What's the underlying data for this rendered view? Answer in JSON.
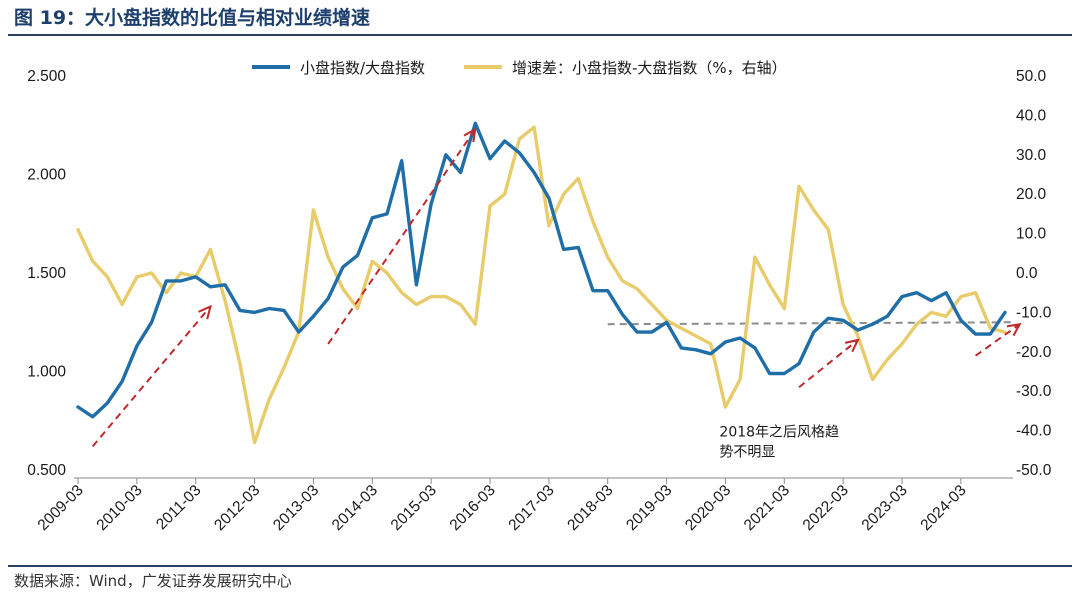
{
  "title": "图 19：大小盘指数的比值与相对业绩增速",
  "source": "数据来源：Wind，广发证券发展研究中心",
  "chart_data": {
    "type": "line",
    "x": [
      "2009-03",
      "2009-06",
      "2009-09",
      "2009-12",
      "2010-03",
      "2010-06",
      "2010-09",
      "2010-12",
      "2011-03",
      "2011-06",
      "2011-09",
      "2011-12",
      "2012-03",
      "2012-06",
      "2012-09",
      "2012-12",
      "2013-03",
      "2013-06",
      "2013-09",
      "2013-12",
      "2014-03",
      "2014-06",
      "2014-09",
      "2014-12",
      "2015-03",
      "2015-06",
      "2015-09",
      "2015-12",
      "2016-03",
      "2016-06",
      "2016-09",
      "2016-12",
      "2017-03",
      "2017-06",
      "2017-09",
      "2017-12",
      "2018-03",
      "2018-06",
      "2018-09",
      "2018-12",
      "2019-03",
      "2019-06",
      "2019-09",
      "2019-12",
      "2020-03",
      "2020-06",
      "2020-09",
      "2020-12",
      "2021-03",
      "2021-06",
      "2021-09",
      "2021-12",
      "2022-03",
      "2022-06",
      "2022-09",
      "2022-12",
      "2023-03",
      "2023-06",
      "2023-09",
      "2023-12",
      "2024-03",
      "2024-06",
      "2024-09",
      "2024-12"
    ],
    "x_tick_labels": [
      "2009-03",
      "2010-03",
      "2011-03",
      "2012-03",
      "2013-03",
      "2014-03",
      "2015-03",
      "2016-03",
      "2017-03",
      "2018-03",
      "2019-03",
      "2020-03",
      "2021-03",
      "2022-03",
      "2023-03",
      "2024-03"
    ],
    "series": [
      {
        "name": "小盘指数/大盘指数",
        "axis": "left",
        "color": "#1f6ea8",
        "values": [
          0.82,
          0.77,
          0.84,
          0.95,
          1.13,
          1.25,
          1.46,
          1.46,
          1.48,
          1.43,
          1.44,
          1.31,
          1.3,
          1.32,
          1.31,
          1.2,
          1.28,
          1.37,
          1.53,
          1.59,
          1.78,
          1.8,
          2.07,
          1.44,
          1.85,
          2.1,
          2.01,
          2.26,
          2.08,
          2.17,
          2.11,
          2.01,
          1.88,
          1.62,
          1.63,
          1.41,
          1.41,
          1.29,
          1.2,
          1.2,
          1.25,
          1.12,
          1.11,
          1.09,
          1.15,
          1.17,
          1.12,
          0.99,
          0.99,
          1.04,
          1.2,
          1.27,
          1.26,
          1.21,
          1.24,
          1.28,
          1.38,
          1.4,
          1.36,
          1.4,
          1.26,
          1.19,
          1.19,
          1.3
        ]
      },
      {
        "name": "增速差：小盘指数-大盘指数（%，右轴）",
        "axis": "right",
        "color": "#e8cc6b",
        "values": [
          11,
          3,
          -1,
          -8,
          -1,
          0,
          -5,
          0,
          -1,
          6,
          -7,
          -23,
          -43,
          -32,
          -24,
          -15,
          16,
          4,
          -4,
          -9,
          3,
          0,
          -5,
          -8,
          -6,
          -6,
          -8,
          -13,
          17,
          20,
          34,
          37,
          12,
          20,
          24,
          13,
          4,
          -2,
          -4,
          -8,
          -12,
          -14,
          -16,
          -18,
          -34,
          -27,
          4,
          -3,
          -9,
          22,
          16,
          11,
          -8,
          -16,
          -27,
          -22,
          -18,
          -13,
          -10,
          -11,
          -6,
          -5,
          -14,
          -15
        ]
      }
    ],
    "left_axis": {
      "ylim": [
        0.5,
        2.5
      ],
      "ticks": [
        "0.500",
        "1.000",
        "1.500",
        "2.000",
        "2.500"
      ]
    },
    "right_axis": {
      "ylim": [
        -50,
        50
      ],
      "ticks": [
        "-50.0",
        "-40.0",
        "-30.0",
        "-20.0",
        "-10.0",
        "0.0",
        "10.0",
        "20.0",
        "30.0",
        "40.0",
        "50.0"
      ]
    },
    "reference_line": {
      "from_index": 36,
      "to_index": 63,
      "start_value": 1.24,
      "end_value": 1.25,
      "color": "#8c8c8c",
      "style": "dashed"
    },
    "trend_arrows": [
      {
        "from_index": 1,
        "from_value": 0.62,
        "to_index": 9,
        "to_value": 1.33
      },
      {
        "from_index": 17,
        "from_value": 1.14,
        "to_index": 27,
        "to_value": 2.23
      },
      {
        "from_index": 49,
        "from_value": 0.92,
        "to_index": 53,
        "to_value": 1.16
      },
      {
        "from_index": 61,
        "from_value": 1.08,
        "to_index": 64,
        "to_value": 1.24
      }
    ],
    "arrow_color": "#c0282d",
    "annotation": {
      "lines": [
        "2018年之后风格趋",
        "势不明显"
      ],
      "at_index": 44,
      "at_value": 0.67
    },
    "legend_placement": "top",
    "grid": false
  }
}
